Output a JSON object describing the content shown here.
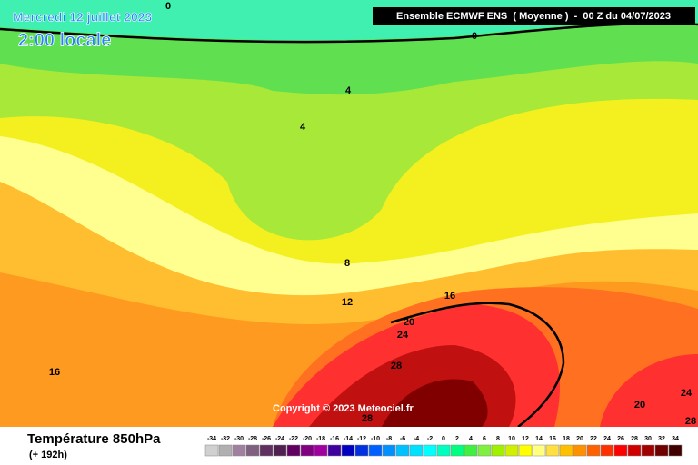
{
  "header": {
    "date": "Mercredi 12 juillet 2023",
    "time": "2:00 locale",
    "model": "Ensemble ECMWF ENS  ( Moyenne )  -  00 Z du 04/07/2023"
  },
  "contour_labels": [
    0,
    0,
    4,
    4,
    8,
    12,
    16,
    20,
    24,
    16,
    28,
    28,
    20,
    24,
    28
  ],
  "copyright": "Copyright © 2023 Meteociel.fr",
  "footer": {
    "title": "Température 850hPa",
    "lead": "(+ 192h)"
  },
  "legend": {
    "ticks": [
      -34,
      -32,
      -30,
      -28,
      -26,
      -24,
      -22,
      -20,
      -18,
      -16,
      -14,
      -12,
      -10,
      -8,
      -6,
      -4,
      -2,
      0,
      2,
      4,
      6,
      8,
      10,
      12,
      14,
      16,
      18,
      20,
      22,
      24,
      26,
      28,
      30,
      32,
      34
    ],
    "colors": [
      "#d0d0d0",
      "#b0b0b0",
      "#a080a0",
      "#806080",
      "#603060",
      "#502050",
      "#600060",
      "#800080",
      "#a000a0",
      "#4000a0",
      "#0000c0",
      "#0030e0",
      "#0060ff",
      "#0090ff",
      "#00c0ff",
      "#00e0ff",
      "#00ffff",
      "#00ffc0",
      "#00ff80",
      "#40f040",
      "#80f040",
      "#a0f000",
      "#d0f000",
      "#ffff00",
      "#ffff80",
      "#ffe040",
      "#ffc000",
      "#ff9000",
      "#ff6000",
      "#ff3000",
      "#ff0000",
      "#d00000",
      "#a00000",
      "#700000",
      "#400000"
    ]
  }
}
